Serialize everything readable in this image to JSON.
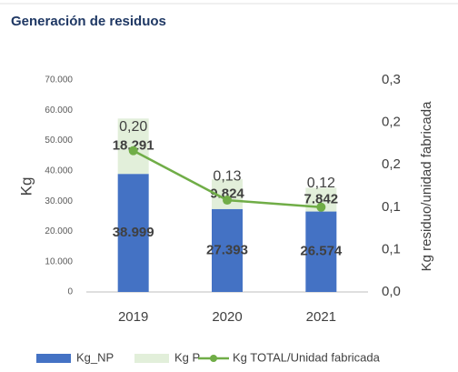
{
  "chart_data": {
    "type": "stacked_bar_line",
    "title": "Generación de residuos",
    "ylabel": "Kg",
    "y2label": "Kg residuo/unidad fabricada",
    "categories": [
      "2019",
      "2020",
      "2021"
    ],
    "series": [
      {
        "name": "Kg_NP",
        "color": "#4472c4",
        "values": [
          38999,
          27393,
          26574
        ],
        "value_labels": [
          "38.999",
          "27.393",
          "26.574"
        ]
      },
      {
        "name": "Kg P",
        "color": "#e2efda",
        "values": [
          18291,
          9824,
          7842
        ],
        "value_labels": [
          "18.291",
          "9.824",
          "7.842"
        ]
      },
      {
        "name": "Kg TOTAL/Unidad fabricada",
        "color": "#70ad47",
        "axis": "y2",
        "values": [
          0.2,
          0.13,
          0.12
        ],
        "value_labels": [
          "0,20",
          "0,13",
          "0,12"
        ]
      }
    ],
    "ylim": [
      0,
      70000
    ],
    "yticks": [
      0,
      {
        "value": 10000,
        "label": "10.000"
      },
      {
        "value": 20000,
        "label": "20.000"
      },
      {
        "value": 30000,
        "label": "30.000"
      },
      {
        "value": 40000,
        "label": "40.000"
      },
      {
        "value": 50000,
        "label": "50.000"
      },
      {
        "value": 60000,
        "label": "60.000"
      },
      {
        "value": 70000,
        "label": "70.000"
      }
    ],
    "y2lim": [
      0,
      0.3
    ],
    "y2ticks": [
      {
        "value": 0,
        "label": "0,0"
      },
      {
        "value": 0.06,
        "label": "0,1"
      },
      {
        "value": 0.12,
        "label": "0,1"
      },
      {
        "value": 0.18,
        "label": "0,2"
      },
      {
        "value": 0.24,
        "label": "0,2"
      },
      {
        "value": 0.3,
        "label": "0,3"
      }
    ],
    "legend": "bottom"
  }
}
